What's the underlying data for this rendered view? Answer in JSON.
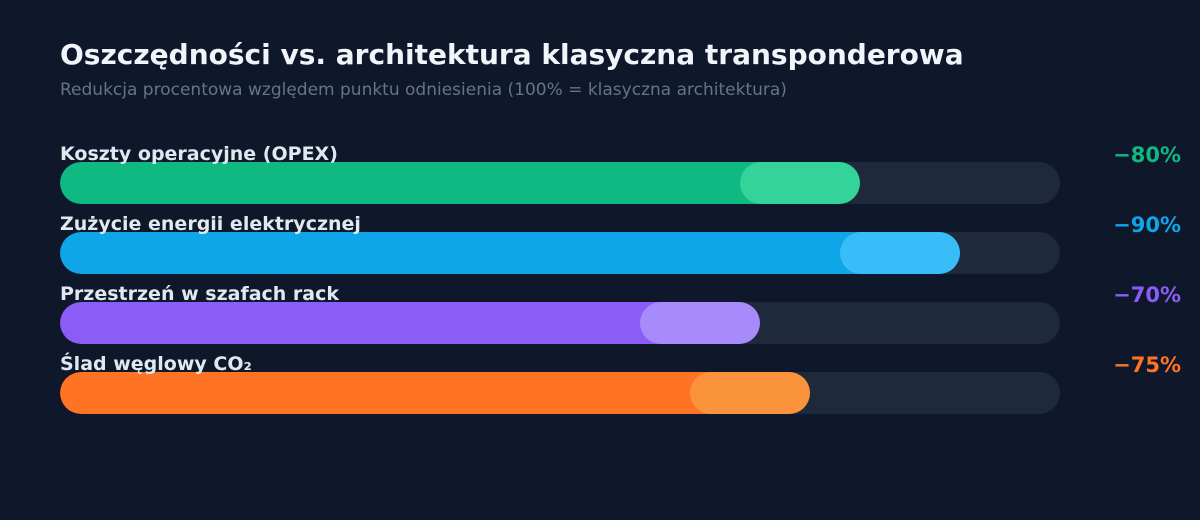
{
  "title": "Oszczędności vs. architektura klasyczna transponderowa",
  "subtitle": "Redukcja procentowa względem punktu odniesienia (100% = klasyczna architektura)",
  "chart_data": {
    "type": "bar",
    "orientation": "horizontal",
    "title": "Oszczędności vs. architektura klasyczna transponderowa",
    "subtitle": "Redukcja procentowa względem punktu odniesienia (100% = klasyczna architektura)",
    "xlim": [
      0,
      100
    ],
    "grid": false,
    "categories": [
      "Koszty operacyjne (OPEX)",
      "Zużycie energii elektrycznej",
      "Przestrzeń w szafach rack",
      "Ślad węglowy CO₂"
    ],
    "values": [
      80,
      90,
      70,
      75
    ],
    "value_labels": [
      "−80%",
      "−90%",
      "−70%",
      "−75%"
    ],
    "colors": [
      "#10b981",
      "#0ea5e9",
      "#8b5cf6",
      "#ff7424"
    ],
    "highlight_colors": [
      "#34d399",
      "#38bdf8",
      "#a78bfa",
      "#fb923c"
    ],
    "track_color": "#1e293b"
  }
}
